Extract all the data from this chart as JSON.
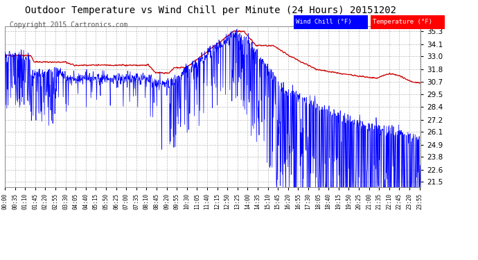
{
  "title": "Outdoor Temperature vs Wind Chill per Minute (24 Hours) 20151202",
  "copyright": "Copyright 2015 Cartronics.com",
  "y_ticks": [
    21.5,
    22.6,
    23.8,
    24.9,
    26.1,
    27.2,
    28.4,
    29.5,
    30.7,
    31.8,
    33.0,
    34.1,
    35.3
  ],
  "ylim": [
    21.0,
    35.8
  ],
  "x_tick_labels": [
    "00:00",
    "00:35",
    "01:10",
    "01:45",
    "02:20",
    "02:55",
    "03:30",
    "04:05",
    "04:40",
    "05:15",
    "05:50",
    "06:25",
    "07:00",
    "07:35",
    "08:10",
    "08:45",
    "09:20",
    "09:55",
    "10:30",
    "11:05",
    "11:40",
    "12:15",
    "12:50",
    "13:25",
    "14:00",
    "14:35",
    "15:10",
    "15:45",
    "16:20",
    "16:55",
    "17:30",
    "18:05",
    "18:40",
    "19:15",
    "19:50",
    "20:25",
    "21:00",
    "21:35",
    "22:10",
    "22:45",
    "23:20",
    "23:55"
  ],
  "legend_labels": [
    "Wind Chill (°F)",
    "Temperature (°F)"
  ],
  "legend_colors": [
    "#0000ff",
    "#ff0000"
  ],
  "temp_color": "#cc0000",
  "wind_color": "#0000ff",
  "bg_color": "#ffffff",
  "grid_color": "#bbbbbb",
  "title_fontsize": 10,
  "copyright_fontsize": 7
}
